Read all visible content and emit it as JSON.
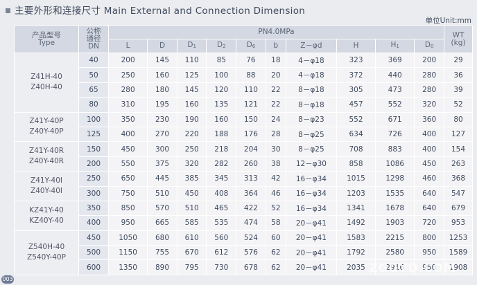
{
  "header": {
    "title": "主要外形和连接尺寸 Main External and Connection Dimension",
    "unit": "单位Unit:mm"
  },
  "table": {
    "columns": {
      "type": [
        "产品型号",
        "Type"
      ],
      "dn": [
        "公称",
        "通径",
        "DN"
      ],
      "pressure": "PN4.0MPa",
      "dims": [
        {
          "base": "L"
        },
        {
          "base": "D"
        },
        {
          "base": "D",
          "sub": "1"
        },
        {
          "base": "D",
          "sub": "2"
        },
        {
          "base": "D",
          "sub": "6"
        },
        {
          "base": "b"
        },
        {
          "base": "Z－φd"
        },
        {
          "base": "H"
        },
        {
          "base": "H",
          "sub": "1"
        },
        {
          "base": "D",
          "sub": "0"
        }
      ],
      "wt": [
        "WT",
        "(kg)"
      ]
    },
    "groups": [
      {
        "models": [
          "Z41H-40",
          "Z40H-40"
        ],
        "rows": 4
      },
      {
        "models": [
          "Z41Y-40P",
          "Z40Y-40P"
        ],
        "rows": 2
      },
      {
        "models": [
          "Z41Y-40R",
          "Z40Y-40R"
        ],
        "rows": 2
      },
      {
        "models": [
          "Z41Y-40I",
          "Z40Y-40I"
        ],
        "rows": 2
      },
      {
        "models": [
          "KZ41Y-40",
          "KZ40Y-40"
        ],
        "rows": 2
      },
      {
        "models": [
          "Z540H-40",
          "Z540Y-40P"
        ],
        "rows": 3
      }
    ],
    "rows": [
      [
        40,
        200,
        145,
        110,
        85,
        76,
        18,
        "4－φ18",
        323,
        369,
        200,
        29
      ],
      [
        50,
        250,
        160,
        125,
        100,
        88,
        20,
        "4－φ18",
        372,
        440,
        280,
        36
      ],
      [
        65,
        280,
        180,
        145,
        120,
        110,
        22,
        "8－φ18",
        305,
        473,
        280,
        39
      ],
      [
        80,
        310,
        195,
        160,
        135,
        121,
        22,
        "8－φ18",
        457,
        552,
        320,
        52
      ],
      [
        100,
        350,
        230,
        190,
        160,
        150,
        24,
        "8－φ23",
        552,
        671,
        360,
        80
      ],
      [
        125,
        400,
        270,
        220,
        188,
        176,
        28,
        "8－φ25",
        634,
        726,
        400,
        127
      ],
      [
        150,
        450,
        300,
        250,
        218,
        204,
        30,
        "8－φ25",
        708,
        883,
        400,
        154
      ],
      [
        200,
        550,
        375,
        320,
        282,
        260,
        38,
        "12－φ30",
        858,
        1086,
        450,
        263
      ],
      [
        250,
        650,
        445,
        385,
        345,
        313,
        42,
        "16－φ34",
        1015,
        1298,
        460,
        368
      ],
      [
        300,
        750,
        510,
        450,
        408,
        364,
        46,
        "16－φ34",
        1203,
        1535,
        640,
        547
      ],
      [
        350,
        850,
        570,
        510,
        465,
        422,
        52,
        "16－φ34",
        1341,
        1678,
        640,
        679
      ],
      [
        400,
        950,
        665,
        585,
        535,
        474,
        58,
        "20－φ41",
        1492,
        1903,
        720,
        953
      ],
      [
        450,
        1050,
        680,
        610,
        560,
        524,
        60,
        "20－φ41",
        1583,
        2215,
        800,
        1253
      ],
      [
        500,
        1150,
        755,
        670,
        612,
        576,
        62,
        "20－φ41",
        1792,
        2580,
        950,
        1589
      ],
      [
        600,
        1350,
        890,
        795,
        730,
        678,
        62,
        "20－φ41",
        2035,
        2916,
        950,
        1908
      ]
    ]
  },
  "page_number": "003",
  "watermark": "ZGGYD.COM"
}
